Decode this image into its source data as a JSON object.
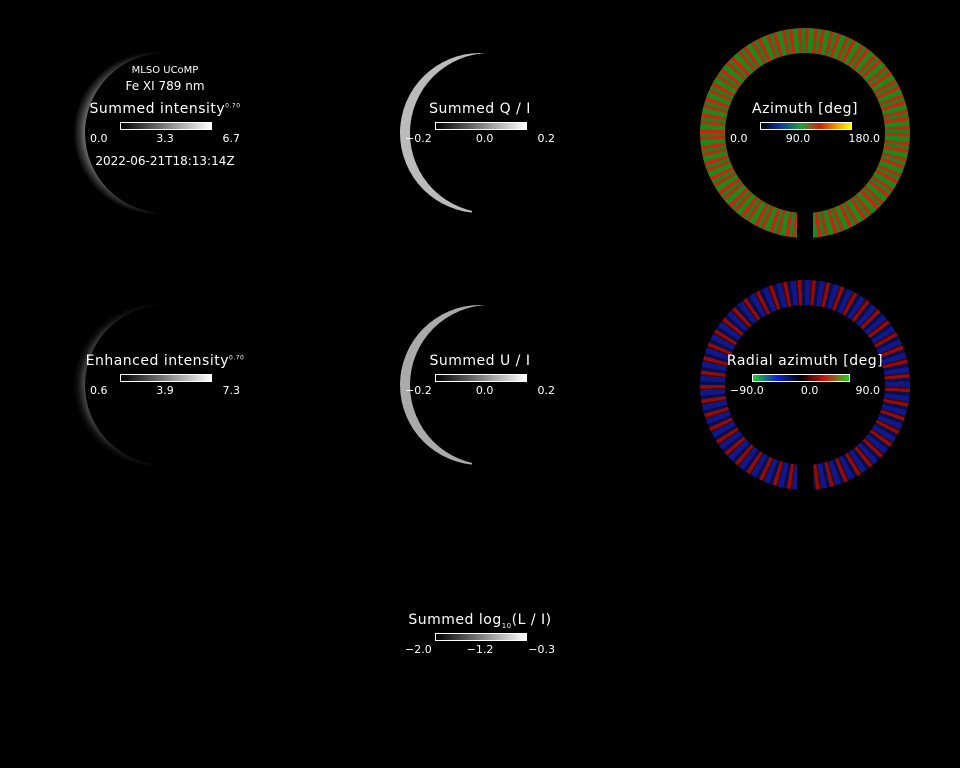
{
  "header": {
    "instrument": "MLSO UCoMP",
    "line": "Fe XI 789 nm",
    "timestamp": "2022-06-21T18:13:14Z"
  },
  "panels": [
    {
      "id": "summed-intensity",
      "title": "Summed intensity",
      "exponent": "0.70",
      "ticks": [
        "0.0",
        "3.3",
        "6.7"
      ],
      "colormap": "gray"
    },
    {
      "id": "summed-q-i",
      "title": "Summed Q / I",
      "ticks": [
        "−0.2",
        "0.0",
        "0.2"
      ],
      "colormap": "gray"
    },
    {
      "id": "azimuth",
      "title": "Azimuth [deg]",
      "ticks": [
        "0.0",
        "90.0",
        "180.0"
      ],
      "colormap": "azimuth"
    },
    {
      "id": "enhanced-intensity",
      "title": "Enhanced intensity",
      "exponent": "0.70",
      "ticks": [
        "0.6",
        "3.9",
        "7.3"
      ],
      "colormap": "gray"
    },
    {
      "id": "summed-u-i",
      "title": "Summed U / I",
      "ticks": [
        "−0.2",
        "0.0",
        "0.2"
      ],
      "colormap": "gray"
    },
    {
      "id": "radial-azimuth",
      "title": "Radial azimuth [deg]",
      "ticks": [
        "−90.0",
        "0.0",
        "90.0"
      ],
      "colormap": "radial-azimuth"
    },
    {
      "id": "summed-log-l-i",
      "title_pre": "Summed log",
      "title_sub": "10",
      "title_post": "(L / I)",
      "ticks": [
        "−2.0",
        "−1.2",
        "−0.3"
      ],
      "colormap": "gray"
    }
  ],
  "colors": {
    "background": "#000000",
    "azimuth_red": "#d02010",
    "azimuth_green": "#1a8a1a",
    "radial_blue": "#1020c0",
    "radial_red": "#c01010"
  }
}
